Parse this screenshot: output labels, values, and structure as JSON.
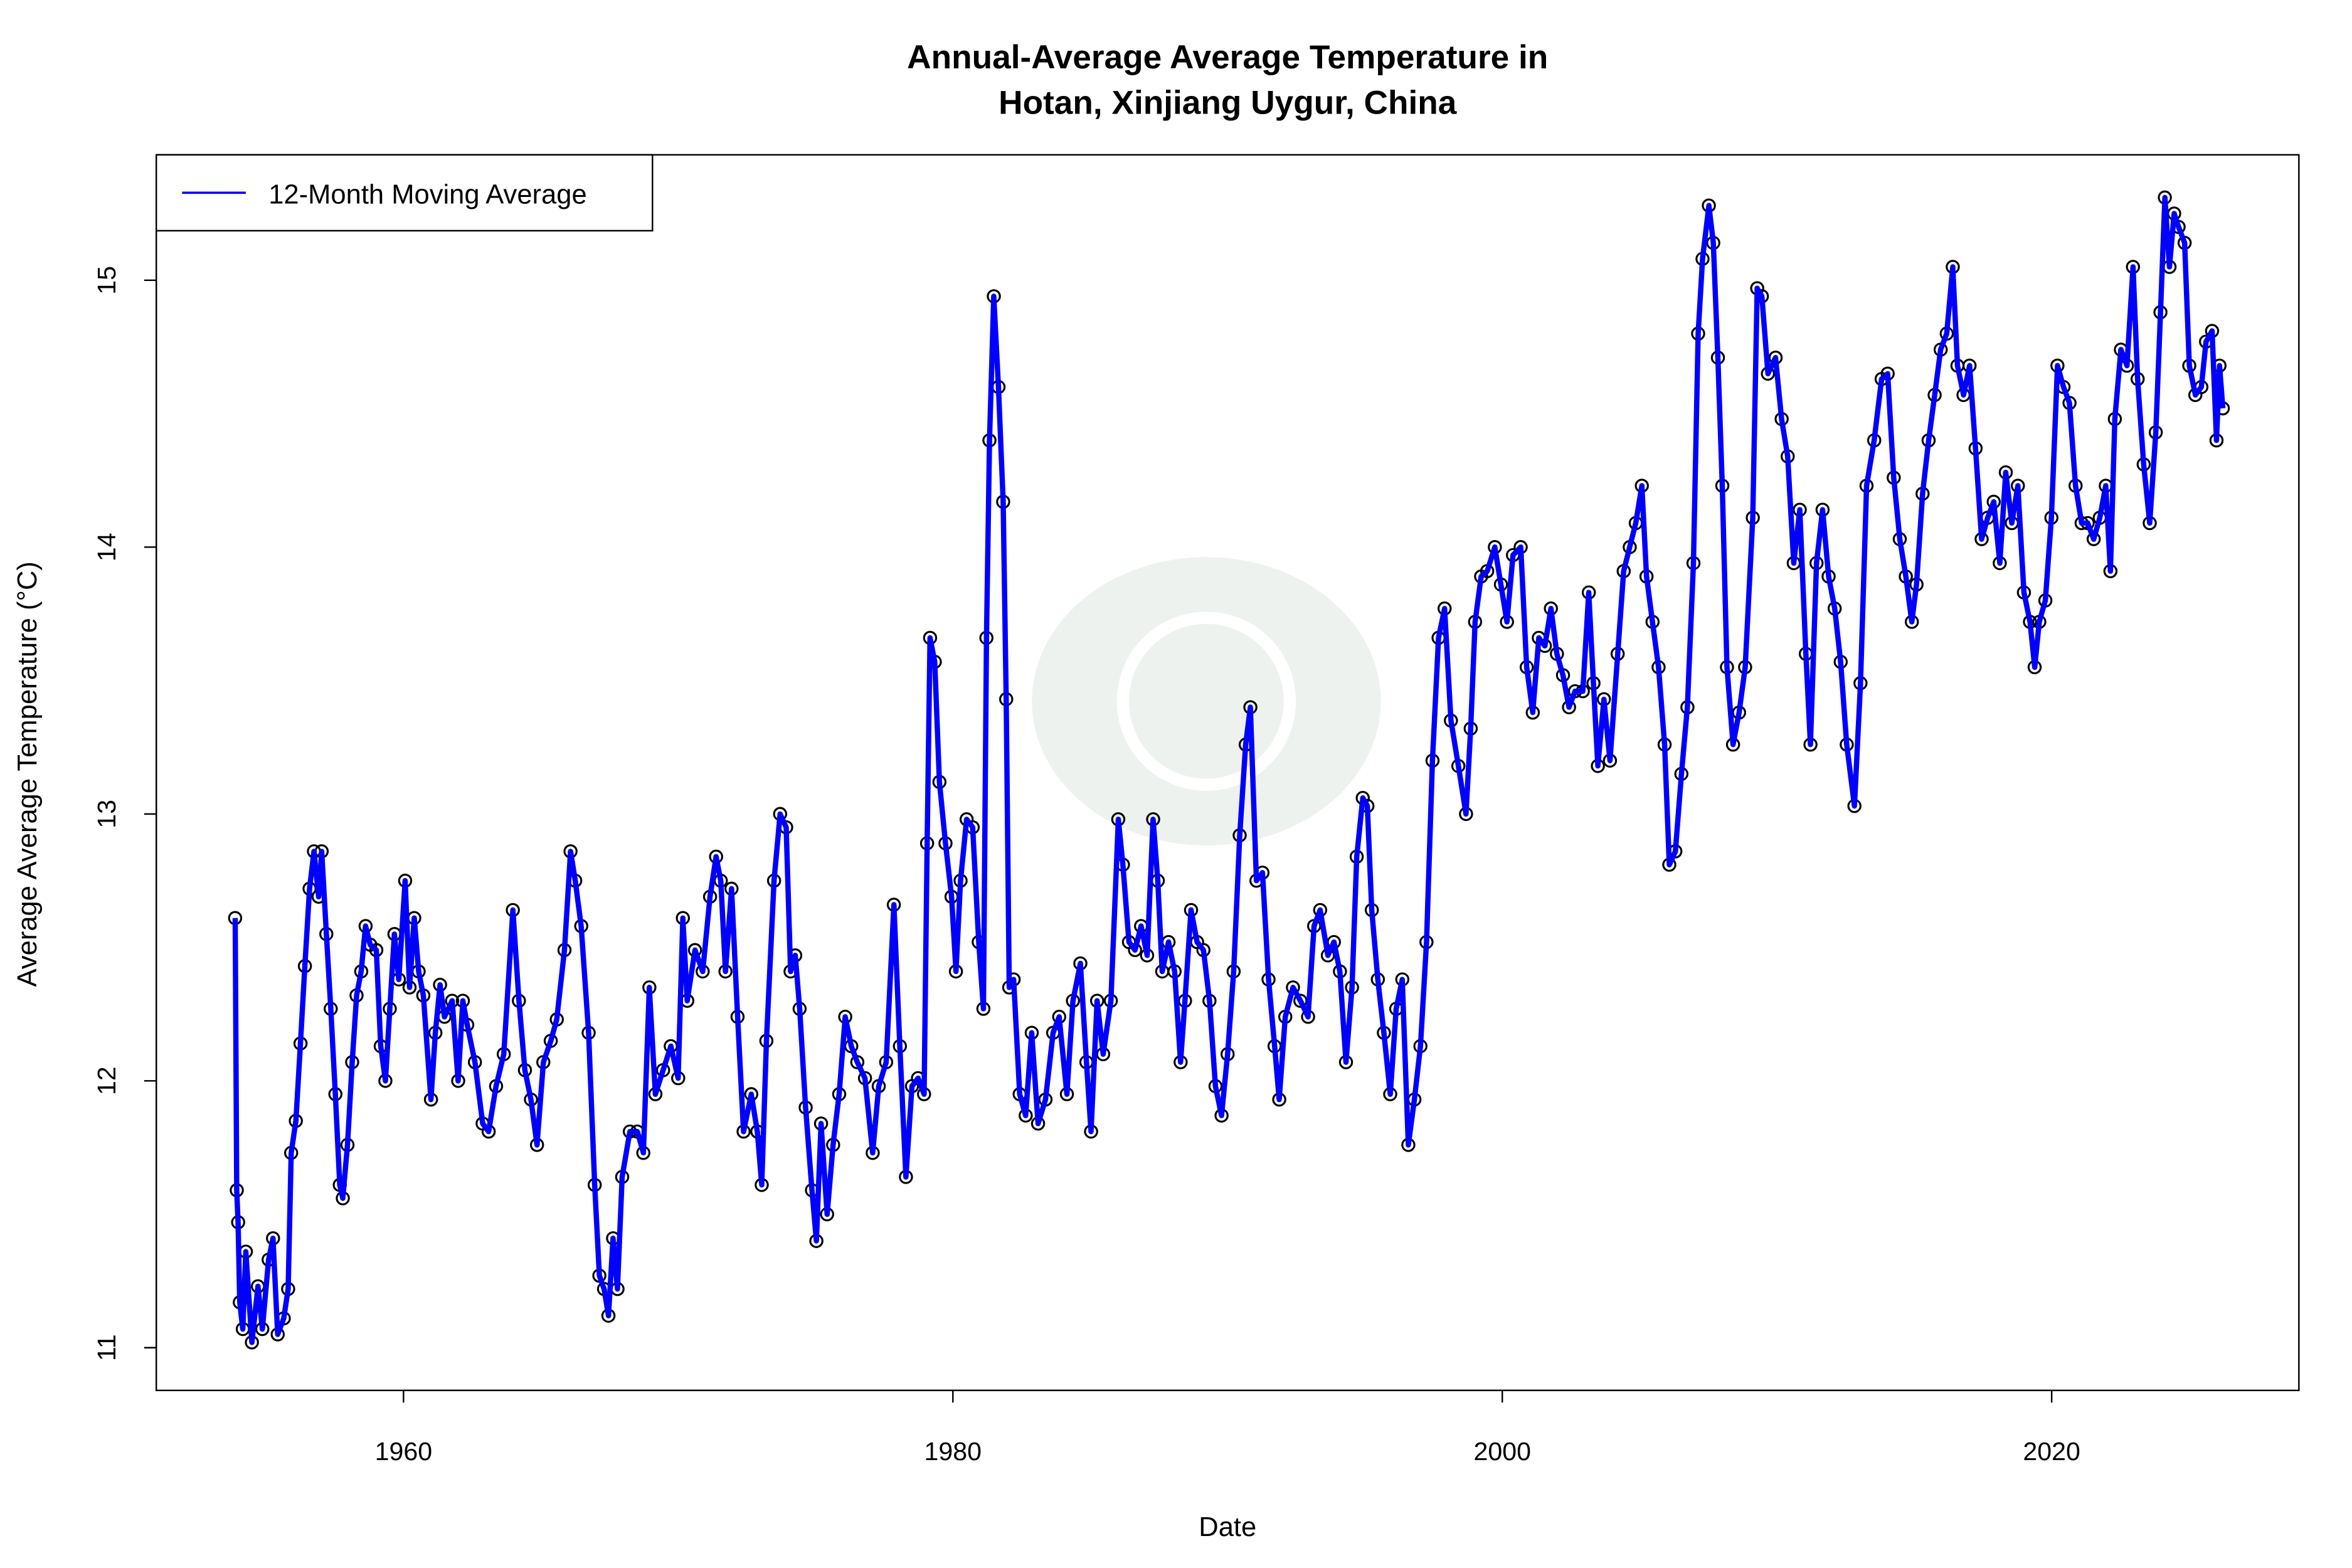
{
  "chart_data": {
    "type": "line",
    "title_line1": "Annual-Average Average Temperature in",
    "title_line2": "Hotan, Xinjiang Uygur, China",
    "xlabel": "Date",
    "ylabel": "Average Average Temperature (°C)",
    "xlim": [
      1951,
      2029
    ],
    "ylim": [
      10.84,
      15.47
    ],
    "xticks": [
      1960,
      1980,
      2000,
      2020
    ],
    "yticks": [
      11,
      12,
      13,
      14,
      15
    ],
    "grid": false,
    "legend_position": "top-left",
    "series": [
      {
        "name": "12-Month Moving Average",
        "color": "#0000ff",
        "marker": "open-circle",
        "x": [
          1953.87,
          1953.93,
          1953.98,
          1954.04,
          1954.15,
          1954.26,
          1954.48,
          1954.7,
          1954.86,
          1955.09,
          1955.25,
          1955.42,
          1955.64,
          1955.8,
          1955.91,
          1956.08,
          1956.25,
          1956.41,
          1956.58,
          1956.74,
          1956.91,
          1957.02,
          1957.19,
          1957.35,
          1957.52,
          1957.68,
          1957.79,
          1957.96,
          1958.13,
          1958.29,
          1958.46,
          1958.62,
          1958.79,
          1959.01,
          1959.17,
          1959.34,
          1959.5,
          1959.67,
          1959.83,
          1960.06,
          1960.22,
          1960.39,
          1960.55,
          1960.72,
          1961.0,
          1961.16,
          1961.33,
          1961.49,
          1961.77,
          1961.99,
          1962.16,
          1962.32,
          1962.6,
          1962.88,
          1963.1,
          1963.37,
          1963.65,
          1963.98,
          1964.2,
          1964.42,
          1964.64,
          1964.86,
          1965.09,
          1965.36,
          1965.58,
          1965.86,
          1966.08,
          1966.25,
          1966.47,
          1966.74,
          1966.96,
          1967.13,
          1967.3,
          1967.46,
          1967.63,
          1967.79,
          1967.96,
          1968.24,
          1968.51,
          1968.73,
          1968.95,
          1969.17,
          1969.45,
          1969.73,
          1970.0,
          1970.17,
          1970.33,
          1970.61,
          1970.89,
          1971.16,
          1971.38,
          1971.55,
          1971.72,
          1971.94,
          1972.16,
          1972.38,
          1972.66,
          1972.88,
          1973.04,
          1973.21,
          1973.49,
          1973.71,
          1973.93,
          1974.09,
          1974.26,
          1974.42,
          1974.64,
          1974.87,
          1975.03,
          1975.2,
          1975.42,
          1975.64,
          1975.86,
          1976.08,
          1976.3,
          1976.52,
          1976.8,
          1977.08,
          1977.3,
          1977.57,
          1977.85,
          1978.07,
          1978.29,
          1978.51,
          1978.73,
          1978.95,
          1979.06,
          1979.17,
          1979.34,
          1979.51,
          1979.73,
          1979.95,
          1980.11,
          1980.28,
          1980.5,
          1980.72,
          1980.94,
          1981.11,
          1981.22,
          1981.33,
          1981.49,
          1981.66,
          1981.83,
          1981.94,
          1982.05,
          1982.21,
          1982.43,
          1982.65,
          1982.87,
          1983.1,
          1983.37,
          1983.65,
          1983.87,
          1984.15,
          1984.37,
          1984.64,
          1984.86,
          1985.03,
          1985.25,
          1985.47,
          1985.75,
          1986.02,
          1986.19,
          1986.41,
          1986.63,
          1986.85,
          1987.07,
          1987.29,
          1987.46,
          1987.62,
          1987.85,
          1988.07,
          1988.29,
          1988.45,
          1988.67,
          1988.89,
          1989.12,
          1989.34,
          1989.56,
          1989.78,
          1990.0,
          1990.22,
          1990.44,
          1990.66,
          1990.83,
          1991.05,
          1991.27,
          1991.49,
          1991.71,
          1991.88,
          1992.1,
          1992.38,
          1992.65,
          1992.93,
          1993.15,
          1993.37,
          1993.65,
          1993.87,
          1994.09,
          1994.31,
          1994.53,
          1994.7,
          1994.92,
          1995.09,
          1995.25,
          1995.47,
          1995.69,
          1995.92,
          1996.14,
          1996.36,
          1996.58,
          1996.8,
          1997.02,
          1997.24,
          1997.46,
          1997.68,
          1997.9,
          1998.13,
          1998.4,
          1998.68,
          1998.85,
          1999.01,
          1999.23,
          1999.45,
          1999.73,
          1999.95,
          2000.17,
          2000.39,
          2000.67,
          2000.89,
          2001.11,
          2001.33,
          2001.55,
          2001.77,
          2001.99,
          2002.21,
          2002.43,
          2002.65,
          2002.93,
          2003.15,
          2003.32,
          2003.48,
          2003.7,
          2003.92,
          2004.2,
          2004.42,
          2004.64,
          2004.86,
          2005.08,
          2005.25,
          2005.47,
          2005.69,
          2005.91,
          2006.08,
          2006.3,
          2006.52,
          2006.74,
          2006.96,
          2007.13,
          2007.29,
          2007.52,
          2007.68,
          2007.85,
          2008.01,
          2008.18,
          2008.4,
          2008.62,
          2008.84,
          2009.12,
          2009.28,
          2009.45,
          2009.67,
          2009.95,
          2010.17,
          2010.39,
          2010.61,
          2010.83,
          2011.05,
          2011.22,
          2011.44,
          2011.66,
          2011.88,
          2012.1,
          2012.32,
          2012.54,
          2012.82,
          2013.04,
          2013.26,
          2013.54,
          2013.81,
          2014.03,
          2014.25,
          2014.47,
          2014.69,
          2014.91,
          2015.08,
          2015.3,
          2015.52,
          2015.74,
          2015.96,
          2016.18,
          2016.4,
          2016.57,
          2016.79,
          2017.01,
          2017.23,
          2017.45,
          2017.67,
          2017.89,
          2018.11,
          2018.33,
          2018.55,
          2018.77,
          2018.99,
          2019.21,
          2019.38,
          2019.55,
          2019.77,
          2019.99,
          2020.21,
          2020.43,
          2020.65,
          2020.87,
          2021.09,
          2021.31,
          2021.53,
          2021.75,
          2021.97,
          2022.14,
          2022.3,
          2022.52,
          2022.74,
          2022.96,
          2023.13,
          2023.35,
          2023.57,
          2023.79,
          2023.96,
          2024.12,
          2024.29,
          2024.46,
          2024.62,
          2024.84,
          2025.01,
          2025.23,
          2025.45,
          2025.62,
          2025.84,
          2026.0,
          2026.11,
          2026.23
        ],
        "y": [
          12.61,
          11.59,
          11.47,
          11.17,
          11.07,
          11.36,
          11.02,
          11.23,
          11.07,
          11.33,
          11.41,
          11.05,
          11.11,
          11.22,
          11.73,
          11.85,
          12.14,
          12.43,
          12.72,
          12.86,
          12.69,
          12.86,
          12.55,
          12.27,
          11.95,
          11.61,
          11.56,
          11.76,
          12.07,
          12.32,
          12.41,
          12.58,
          12.51,
          12.49,
          12.13,
          12.0,
          12.27,
          12.55,
          12.38,
          12.75,
          12.35,
          12.61,
          12.41,
          12.32,
          11.93,
          12.18,
          12.36,
          12.24,
          12.3,
          12.0,
          12.3,
          12.21,
          12.07,
          11.84,
          11.81,
          11.98,
          12.1,
          12.64,
          12.3,
          12.04,
          11.93,
          11.76,
          12.07,
          12.15,
          12.23,
          12.49,
          12.86,
          12.75,
          12.58,
          12.18,
          11.61,
          11.27,
          11.22,
          11.12,
          11.41,
          11.22,
          11.64,
          11.81,
          11.81,
          11.73,
          12.35,
          11.95,
          12.04,
          12.13,
          12.01,
          12.61,
          12.3,
          12.49,
          12.41,
          12.69,
          12.84,
          12.75,
          12.41,
          12.72,
          12.24,
          11.81,
          11.95,
          11.81,
          11.61,
          12.15,
          12.75,
          13.0,
          12.95,
          12.41,
          12.47,
          12.27,
          11.9,
          11.59,
          11.4,
          11.84,
          11.5,
          11.76,
          11.95,
          12.24,
          12.13,
          12.07,
          12.01,
          11.73,
          11.98,
          12.07,
          12.66,
          12.13,
          11.64,
          11.98,
          12.01,
          11.95,
          12.89,
          13.66,
          13.57,
          13.12,
          12.89,
          12.69,
          12.41,
          12.75,
          12.98,
          12.95,
          12.52,
          12.27,
          13.66,
          14.4,
          14.94,
          14.6,
          14.17,
          13.43,
          12.35,
          12.38,
          11.95,
          11.87,
          12.18,
          11.84,
          11.93,
          12.18,
          12.24,
          11.95,
          12.3,
          12.44,
          12.07,
          11.81,
          12.3,
          12.1,
          12.3,
          12.98,
          12.81,
          12.52,
          12.49,
          12.58,
          12.47,
          12.98,
          12.75,
          12.41,
          12.52,
          12.41,
          12.07,
          12.3,
          12.64,
          12.52,
          12.49,
          12.3,
          11.98,
          11.87,
          12.1,
          12.41,
          12.92,
          13.26,
          13.4,
          12.75,
          12.78,
          12.38,
          12.13,
          11.93,
          12.24,
          12.35,
          12.3,
          12.24,
          12.58,
          12.64,
          12.47,
          12.52,
          12.41,
          12.07,
          12.35,
          12.84,
          13.06,
          13.03,
          12.64,
          12.38,
          12.18,
          11.95,
          12.27,
          12.38,
          11.76,
          11.93,
          12.13,
          12.52,
          13.2,
          13.66,
          13.77,
          13.35,
          13.18,
          13.0,
          13.32,
          13.72,
          13.89,
          13.91,
          14.0,
          13.86,
          13.72,
          13.97,
          14.0,
          13.55,
          13.38,
          13.66,
          13.63,
          13.77,
          13.6,
          13.52,
          13.4,
          13.46,
          13.46,
          13.83,
          13.49,
          13.18,
          13.43,
          13.2,
          13.6,
          13.91,
          14.0,
          14.09,
          14.23,
          13.89,
          13.72,
          13.55,
          13.26,
          12.81,
          12.86,
          13.15,
          13.4,
          13.94,
          14.8,
          15.08,
          15.28,
          15.14,
          14.71,
          14.23,
          13.55,
          13.26,
          13.38,
          13.55,
          14.11,
          14.97,
          14.94,
          14.65,
          14.71,
          14.48,
          14.34,
          13.94,
          14.14,
          13.6,
          13.26,
          13.94,
          14.14,
          13.89,
          13.77,
          13.57,
          13.26,
          13.03,
          13.49,
          14.23,
          14.4,
          14.63,
          14.65,
          14.26,
          14.03,
          13.89,
          13.72,
          13.86,
          14.2,
          14.4,
          14.57,
          14.74,
          14.8,
          15.05,
          14.68,
          14.57,
          14.68,
          14.37,
          14.03,
          14.11,
          14.17,
          13.94,
          14.28,
          14.09,
          14.23,
          13.83,
          13.72,
          13.55,
          13.72,
          13.8,
          14.11,
          14.68,
          14.6,
          14.54,
          14.23,
          14.09,
          14.09,
          14.03,
          14.11,
          14.23,
          13.91,
          14.48,
          14.74,
          14.68,
          15.05,
          14.63,
          14.31,
          14.09,
          14.43,
          14.88,
          15.31,
          15.05,
          15.25,
          15.2,
          15.14,
          14.68,
          14.57,
          14.6,
          14.77,
          14.81,
          14.4,
          14.68,
          14.52
        ]
      }
    ]
  }
}
